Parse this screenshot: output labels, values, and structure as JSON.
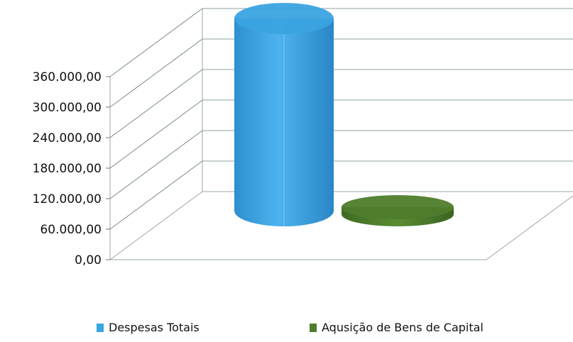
{
  "chart_data": {
    "type": "bar",
    "style": "3d-cylinder",
    "categories": [
      ""
    ],
    "series": [
      {
        "name": "Despesas Totais",
        "values": [
          360000
        ],
        "color": "#3aa3e0"
      },
      {
        "name": "Aqusição de Bens de Capital",
        "values": [
          0
        ],
        "color": "#4e7d2c"
      }
    ],
    "ylim": [
      0,
      360000
    ],
    "yticks": [
      0,
      60000,
      120000,
      180000,
      240000,
      300000,
      360000
    ],
    "ytick_labels": [
      "0,00",
      "60.000,00",
      "120.000,00",
      "180.000,00",
      "240.000,00",
      "300.000,00",
      "360.000,00"
    ],
    "grid": true,
    "legend_position": "bottom"
  }
}
